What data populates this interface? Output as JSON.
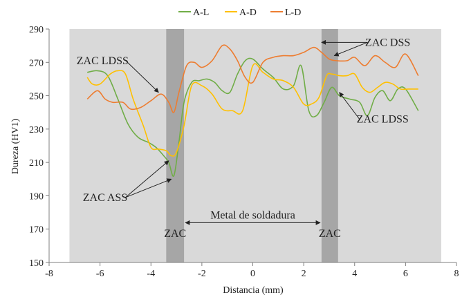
{
  "chart_data": {
    "type": "line",
    "xlabel": "Distancia (mm)",
    "ylabel": "Dureza (HV1)",
    "xlim": [
      -8,
      8
    ],
    "ylim": [
      150,
      290
    ],
    "xticks": [
      -8,
      -6,
      -4,
      -2,
      0,
      2,
      4,
      6,
      8
    ],
    "xtick_labels": [
      "-8",
      "-6",
      "-4",
      "-2",
      "0",
      "2",
      "4",
      "6",
      "8"
    ],
    "yticks": [
      150,
      170,
      190,
      210,
      230,
      250,
      270,
      290
    ],
    "ytick_labels": [
      "150",
      "170",
      "190",
      "210",
      "230",
      "250",
      "270",
      "290"
    ],
    "grid": false,
    "legend_position": "top-center",
    "plot_background": "#d9d9d9",
    "sample_band": {
      "x": [
        -7.2,
        7.4
      ],
      "color": "#d9d9d9"
    },
    "haz_bands": [
      {
        "x": [
          -3.4,
          -2.7
        ],
        "label": "ZAC",
        "color": "#a6a6a6"
      },
      {
        "x": [
          2.7,
          3.35
        ],
        "label": "ZAC",
        "color": "#a6a6a6"
      }
    ],
    "weld_metal": {
      "label": "Metal de soldadura",
      "x": [
        -2.7,
        2.7
      ],
      "y": 178
    },
    "series": [
      {
        "name": "A-L",
        "color": "#70ad47",
        "x": [
          -6.5,
          -6.1,
          -5.7,
          -5.3,
          -4.9,
          -4.5,
          -4.1,
          -3.8,
          -3.5,
          -3.3,
          -3.1,
          -2.9,
          -2.7,
          -2.4,
          -2.1,
          -1.8,
          -1.5,
          -1.2,
          -0.9,
          -0.6,
          -0.3,
          0.0,
          0.4,
          0.8,
          1.2,
          1.6,
          1.9,
          2.2,
          2.5,
          2.8,
          3.1,
          3.4,
          3.8,
          4.2,
          4.5,
          4.8,
          5.1,
          5.4,
          5.7,
          6.0,
          6.5
        ],
        "y": [
          264,
          265,
          262,
          248,
          233,
          225,
          222,
          219,
          214,
          210,
          202,
          222,
          246,
          258,
          259,
          260,
          258,
          253,
          252,
          263,
          271,
          272,
          266,
          261,
          254,
          256,
          268,
          241,
          238,
          246,
          255,
          250,
          248,
          246,
          238,
          249,
          253,
          247,
          254,
          254,
          241
        ]
      },
      {
        "name": "A-D",
        "color": "#ffc000",
        "x": [
          -6.5,
          -6.3,
          -6.0,
          -5.6,
          -5.3,
          -5.0,
          -4.7,
          -4.3,
          -4.0,
          -3.7,
          -3.4,
          -3.2,
          -3.0,
          -2.7,
          -2.4,
          -2.0,
          -1.6,
          -1.2,
          -0.8,
          -0.4,
          0.0,
          0.4,
          0.8,
          1.2,
          1.6,
          2.0,
          2.3,
          2.6,
          2.9,
          3.1,
          3.4,
          3.7,
          4.0,
          4.3,
          4.6,
          4.9,
          5.2,
          5.5,
          5.8,
          6.1,
          6.5
        ],
        "y": [
          261,
          257,
          257,
          263,
          265,
          263,
          248,
          232,
          219,
          218,
          217,
          214,
          216,
          232,
          256,
          256,
          251,
          242,
          241,
          241,
          268,
          264,
          260,
          259,
          255,
          245,
          245,
          249,
          262,
          263,
          262,
          262,
          263,
          255,
          252,
          255,
          258,
          257,
          254,
          254,
          254
        ]
      },
      {
        "name": "L-D",
        "color": "#ed7d31",
        "x": [
          -6.5,
          -6.1,
          -5.8,
          -5.5,
          -5.1,
          -4.8,
          -4.4,
          -4.0,
          -3.6,
          -3.3,
          -3.1,
          -2.9,
          -2.6,
          -2.3,
          -2.0,
          -1.6,
          -1.2,
          -0.9,
          -0.6,
          -0.3,
          0.0,
          0.4,
          0.8,
          1.2,
          1.6,
          2.0,
          2.4,
          2.7,
          3.0,
          3.3,
          3.7,
          4.0,
          4.4,
          4.8,
          5.2,
          5.6,
          6.0,
          6.5
        ],
        "y": [
          248,
          253,
          248,
          246,
          246,
          242,
          243,
          247,
          251,
          246,
          240,
          252,
          268,
          270,
          267,
          271,
          280,
          278,
          271,
          261,
          258,
          270,
          273,
          274,
          274,
          276,
          279,
          276,
          272,
          271,
          271,
          273,
          268,
          274,
          270,
          267,
          275,
          262
        ]
      }
    ],
    "annotations": [
      {
        "text": "ZAC LDSS",
        "text_pos": [
          -5.9,
          271
        ],
        "arrow_to": [
          [
            -3.7,
            252
          ]
        ]
      },
      {
        "text": "ZAC ASS",
        "text_pos": [
          -5.8,
          189
        ],
        "arrow_to": [
          [
            -3.3,
            211
          ],
          [
            -3.2,
            200
          ]
        ]
      },
      {
        "text": "ZAC DSS",
        "text_pos": [
          5.3,
          282
        ],
        "arrow_to": [
          [
            2.7,
            282
          ],
          [
            3.2,
            274
          ]
        ]
      },
      {
        "text": "ZAC LDSS",
        "text_pos": [
          5.1,
          236
        ],
        "arrow_to": [
          [
            3.4,
            252
          ]
        ]
      }
    ]
  }
}
